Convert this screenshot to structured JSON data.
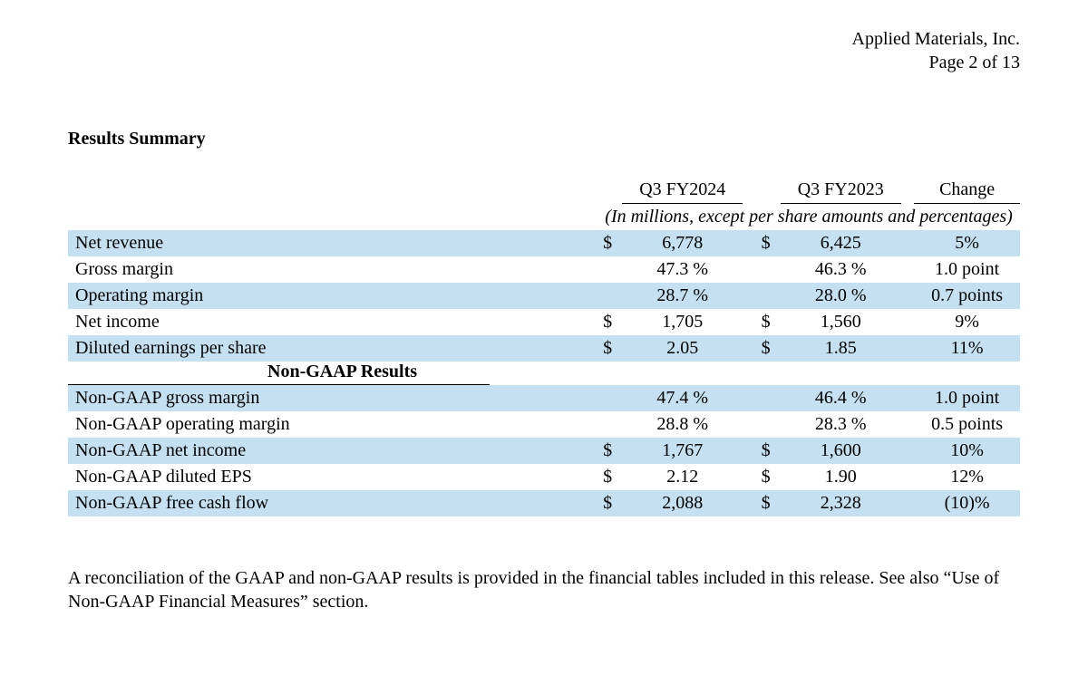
{
  "header": {
    "company": "Applied Materials, Inc.",
    "page": "Page 2 of 13"
  },
  "section_title": "Results Summary",
  "table": {
    "column_headers": {
      "c1": "Q3 FY2024",
      "c2": "Q3 FY2023",
      "c3": "Change"
    },
    "subheader": "(In millions, except per share amounts and percentages)",
    "rows": [
      {
        "label": "Net revenue",
        "s1": "$",
        "v1": "6,778",
        "s2": "$",
        "v2": "6,425",
        "chg": "5%",
        "shaded": true
      },
      {
        "label": "Gross margin",
        "s1": "",
        "v1": "47.3 %",
        "s2": "",
        "v2": "46.3 %",
        "chg": "1.0 point",
        "shaded": false
      },
      {
        "label": "Operating margin",
        "s1": "",
        "v1": "28.7 %",
        "s2": "",
        "v2": "28.0 %",
        "chg": "0.7 points",
        "shaded": true
      },
      {
        "label": "Net income",
        "s1": "$",
        "v1": "1,705",
        "s2": "$",
        "v2": "1,560",
        "chg": "9%",
        "shaded": false
      },
      {
        "label": "Diluted earnings per share",
        "s1": "$",
        "v1": "2.05",
        "s2": "$",
        "v2": "1.85",
        "chg": "11%",
        "shaded": true
      }
    ],
    "divider_label": "Non-GAAP Results",
    "rows2": [
      {
        "label": "Non-GAAP gross margin",
        "s1": "",
        "v1": "47.4 %",
        "s2": "",
        "v2": "46.4 %",
        "chg": "1.0 point",
        "shaded": true
      },
      {
        "label": "Non-GAAP operating margin",
        "s1": "",
        "v1": "28.8 %",
        "s2": "",
        "v2": "28.3 %",
        "chg": "0.5 points",
        "shaded": false
      },
      {
        "label": "Non-GAAP net income",
        "s1": "$",
        "v1": "1,767",
        "s2": "$",
        "v2": "1,600",
        "chg": "10%",
        "shaded": true
      },
      {
        "label": "Non-GAAP diluted EPS",
        "s1": "$",
        "v1": "2.12",
        "s2": "$",
        "v2": "1.90",
        "chg": "12%",
        "shaded": false
      },
      {
        "label": "Non-GAAP free cash flow",
        "s1": "$",
        "v1": "2,088",
        "s2": "$",
        "v2": "2,328",
        "chg": "(10)%",
        "shaded": true
      }
    ]
  },
  "footer": "A reconciliation of the GAAP and non-GAAP results is provided in the financial tables included in this release. See also “Use of Non-GAAP Financial Measures” section.",
  "colors": {
    "row_shade": "#c5e0f0",
    "text": "#000000",
    "bg": "#ffffff"
  }
}
